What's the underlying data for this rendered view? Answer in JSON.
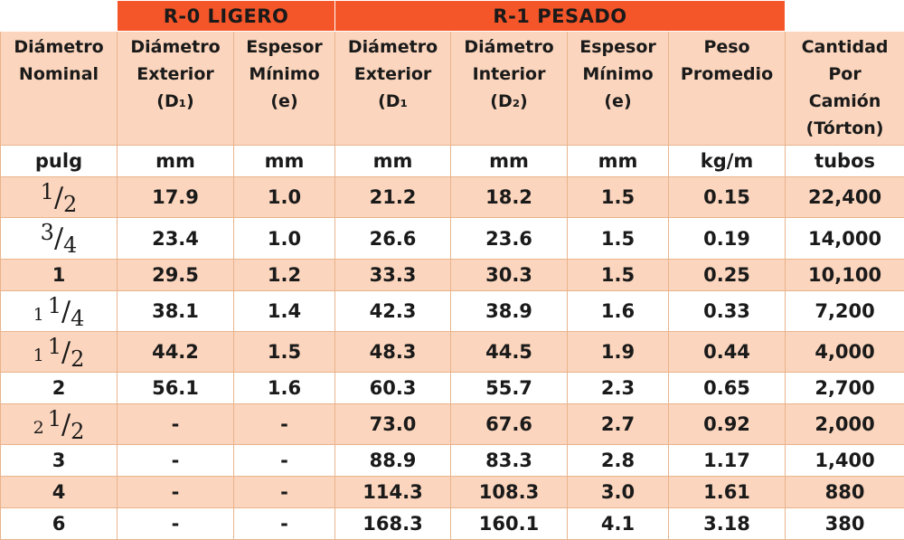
{
  "groups": {
    "r0": "R-0 LIGERO",
    "r1": "R-1 PESADO"
  },
  "headers": [
    [
      "Diámetro",
      "Nominal"
    ],
    [
      "Diámetro",
      "Exterior",
      "(D₁)"
    ],
    [
      "Espesor",
      "Mínimo",
      "(e)"
    ],
    [
      "Diámetro",
      "Exterior",
      "(D₁"
    ],
    [
      "Diámetro",
      "Interior",
      "(D₂)"
    ],
    [
      "Espesor",
      "Mínimo",
      "(e)"
    ],
    [
      "Peso",
      "Promedio"
    ],
    [
      "Cantidad",
      "Por",
      "Camión",
      "(Tórton)"
    ]
  ],
  "units": [
    "pulg",
    "mm",
    "mm",
    "mm",
    "mm",
    "mm",
    "kg/m",
    "tubos"
  ],
  "rows": [
    {
      "nominal": {
        "whole": "",
        "num": "1",
        "den": "2"
      },
      "cells": [
        "17.9",
        "1.0",
        "21.2",
        "18.2",
        "1.5",
        "0.15",
        "22,400"
      ]
    },
    {
      "nominal": {
        "whole": "",
        "num": "3",
        "den": "4"
      },
      "cells": [
        "23.4",
        "1.0",
        "26.6",
        "23.6",
        "1.5",
        "0.19",
        "14,000"
      ]
    },
    {
      "nominal": {
        "plain": "1"
      },
      "cells": [
        "29.5",
        "1.2",
        "33.3",
        "30.3",
        "1.5",
        "0.25",
        "10,100"
      ]
    },
    {
      "nominal": {
        "whole": "1",
        "num": "1",
        "den": "4"
      },
      "cells": [
        "38.1",
        "1.4",
        "42.3",
        "38.9",
        "1.6",
        "0.33",
        "7,200"
      ]
    },
    {
      "nominal": {
        "whole": "1",
        "num": "1",
        "den": "2"
      },
      "cells": [
        "44.2",
        "1.5",
        "48.3",
        "44.5",
        "1.9",
        "0.44",
        "4,000"
      ]
    },
    {
      "nominal": {
        "plain": "2"
      },
      "cells": [
        "56.1",
        "1.6",
        "60.3",
        "55.7",
        "2.3",
        "0.65",
        "2,700"
      ]
    },
    {
      "nominal": {
        "whole": "2",
        "num": "1",
        "den": "2"
      },
      "cells": [
        "-",
        "-",
        "73.0",
        "67.6",
        "2.7",
        "0.92",
        "2,000"
      ]
    },
    {
      "nominal": {
        "plain": "3"
      },
      "cells": [
        "-",
        "-",
        "88.9",
        "83.3",
        "2.8",
        "1.17",
        "1,400"
      ]
    },
    {
      "nominal": {
        "plain": "4"
      },
      "cells": [
        "-",
        "-",
        "114.3",
        "108.3",
        "3.0",
        "1.61",
        "880"
      ]
    },
    {
      "nominal": {
        "plain": "6"
      },
      "cells": [
        "-",
        "-",
        "168.3",
        "160.1",
        "4.1",
        "3.18",
        "380"
      ]
    }
  ]
}
